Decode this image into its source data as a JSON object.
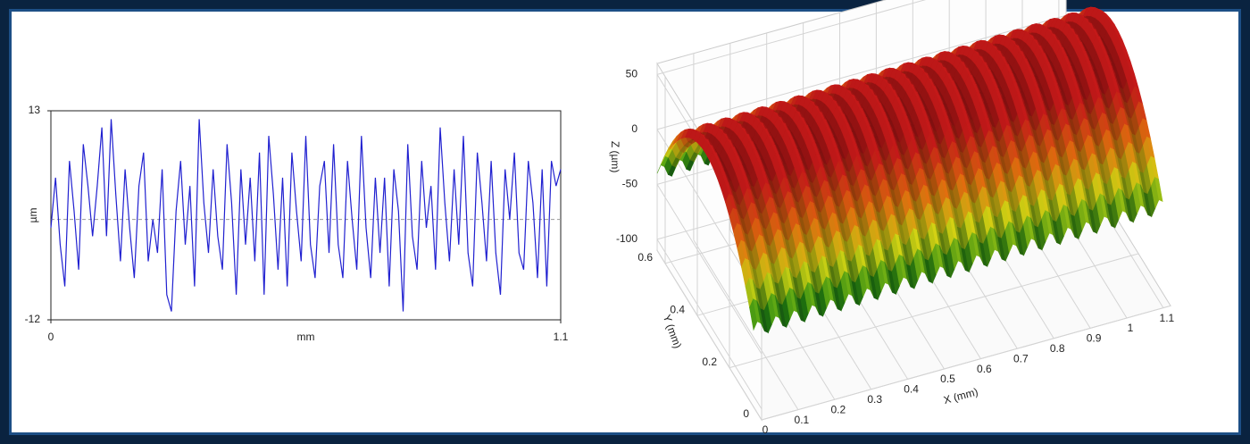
{
  "charts": [
    {
      "type": "line",
      "xlabel": "mm",
      "ylabel": "µm",
      "color": "#2020d0",
      "zero_line": true,
      "xlim": [
        0,
        1.1
      ],
      "xticks": [
        0,
        1.1
      ],
      "ylim": [
        -12,
        13
      ],
      "yticks": [
        -12,
        13
      ],
      "x": [
        0,
        0.01,
        0.02,
        0.03,
        0.04,
        0.05,
        0.06,
        0.07,
        0.08,
        0.09,
        0.1,
        0.11,
        0.12,
        0.13,
        0.14,
        0.15,
        0.16,
        0.17,
        0.18,
        0.19,
        0.2,
        0.21,
        0.22,
        0.23,
        0.24,
        0.25,
        0.26,
        0.27,
        0.28,
        0.29,
        0.3,
        0.31,
        0.32,
        0.33,
        0.34,
        0.35,
        0.36,
        0.37,
        0.38,
        0.39,
        0.4,
        0.41,
        0.42,
        0.43,
        0.44,
        0.45,
        0.46,
        0.47,
        0.48,
        0.49,
        0.5,
        0.51,
        0.52,
        0.53,
        0.54,
        0.55,
        0.56,
        0.57,
        0.58,
        0.59,
        0.6,
        0.61,
        0.62,
        0.63,
        0.64,
        0.65,
        0.66,
        0.67,
        0.68,
        0.69,
        0.7,
        0.71,
        0.72,
        0.73,
        0.74,
        0.75,
        0.76,
        0.77,
        0.78,
        0.79,
        0.8,
        0.81,
        0.82,
        0.83,
        0.84,
        0.85,
        0.86,
        0.87,
        0.88,
        0.89,
        0.9,
        0.91,
        0.92,
        0.93,
        0.94,
        0.95,
        0.96,
        0.97,
        0.98,
        0.99,
        1,
        1.01,
        1.02,
        1.03,
        1.04,
        1.05,
        1.06,
        1.07,
        1.08,
        1.09,
        1.1
      ],
      "values": [
        -1,
        5,
        -3,
        -8,
        7,
        1,
        -6,
        9,
        4,
        -2,
        4,
        11,
        -2,
        12,
        3,
        -5,
        6,
        -1,
        -7,
        4,
        8,
        -5,
        0,
        -4,
        6,
        -9,
        -11,
        1,
        7,
        -3,
        4,
        -8,
        12,
        2,
        -4,
        6,
        -2,
        -6,
        9,
        2,
        -9,
        6,
        -3,
        5,
        -5,
        8,
        -9,
        10,
        3,
        -6,
        5,
        -8,
        8,
        1,
        -5,
        10,
        -3,
        -7,
        4,
        7,
        -4,
        9,
        -3,
        -7,
        7,
        0,
        -6,
        10,
        -1,
        -7,
        5,
        -4,
        5,
        -8,
        6,
        1,
        -11,
        9,
        -2,
        -6,
        7,
        -1,
        4,
        -6,
        11,
        2,
        -5,
        6,
        -3,
        10,
        -4,
        -8,
        8,
        2,
        -5,
        7,
        -4,
        -9,
        6,
        0,
        8,
        -4,
        -6,
        7,
        2,
        -7,
        6,
        -8,
        7,
        4,
        6
      ]
    },
    {
      "type": "surface3d",
      "xlabel": "X (mm)",
      "ylabel": "Y (mm)",
      "zlabel": "Z (µm)",
      "grid": true,
      "xlim": [
        0,
        1.12
      ],
      "xticks": [
        0,
        0.1,
        0.2,
        0.3,
        0.4,
        0.5,
        0.6,
        0.7,
        0.8,
        0.9,
        1,
        1.1
      ],
      "ylim": [
        0,
        0.65
      ],
      "yticks": [
        0,
        0.2,
        0.4,
        0.6
      ],
      "zlim": [
        -110,
        60
      ],
      "zticks": [
        -100,
        -50,
        0,
        50
      ]
    }
  ]
}
